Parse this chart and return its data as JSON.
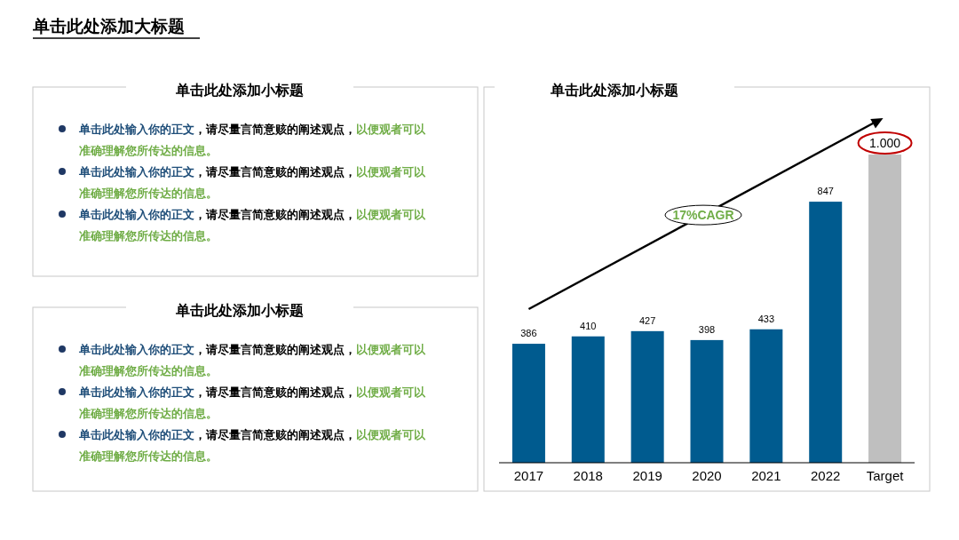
{
  "chart_data": [
    {
      "type": "other",
      "title": "单击此处添加大标题"
    },
    {
      "type": "other",
      "title": "单击此处添加小标题",
      "annotations": [
        "单击此处输入你的正文，请尽量言简意赅的阐述观点，以便观者可以准确理解您所传达的信息。",
        "单击此处输入你的正文，请尽量言简意赅的阐述观点，以便观者可以准确理解您所传达的信息。",
        "单击此处输入你的正文，请尽量言简意赅的阐述观点，以便观者可以准确理解您所传达的信息。"
      ]
    },
    {
      "type": "other",
      "title": "单击此处添加小标题",
      "annotations": [
        "单击此处输入你的正文，请尽量言简意赅的阐述观点，以便观者可以准确理解您所传达的信息。",
        "单击此处输入你的正文，请尽量言简意赅的阐述观点，以便观者可以准确理解您所传达的信息。",
        "单击此处输入你的正文，请尽量言简意赅的阐述观点，以便观者可以准确理解您所传达的信息。"
      ]
    },
    {
      "type": "bar",
      "title": "单击此处添加小标题",
      "categories": [
        "2017",
        "2018",
        "2019",
        "2020",
        "2021",
        "2022",
        "Target"
      ],
      "values": [
        386,
        410,
        427,
        398,
        433,
        847,
        1000
      ],
      "colors": [
        "#005b8f",
        "#005b8f",
        "#005b8f",
        "#005b8f",
        "#005b8f",
        "#005b8f",
        "#bfbfbf"
      ],
      "value_labels": [
        "386",
        "410",
        "427",
        "398",
        "433",
        "847",
        "1.000"
      ],
      "annotations": [
        "17%CAGR"
      ]
    }
  ]
}
